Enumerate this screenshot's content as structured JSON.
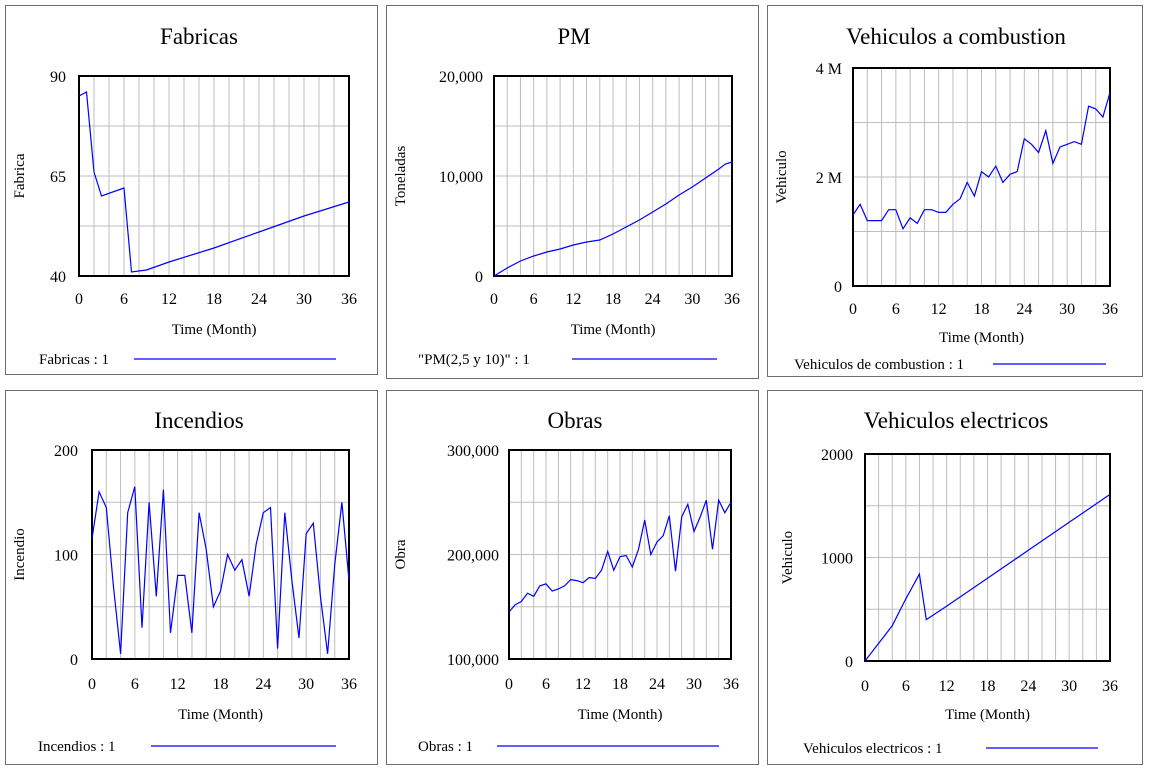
{
  "chart_data": [
    {
      "id": "fabricas",
      "type": "line",
      "title": "Fabricas",
      "xlabel": "Time (Month)",
      "ylabel": "Fabrica",
      "xlim": [
        0,
        36
      ],
      "ylim": [
        40,
        90
      ],
      "x_ticks": [
        0,
        6,
        12,
        18,
        24,
        30,
        36
      ],
      "x_tick_labels": [
        "0",
        "6",
        "12",
        "18",
        "24",
        "30",
        "36"
      ],
      "y_ticks": [
        40,
        65,
        90
      ],
      "y_tick_labels": [
        "40",
        "65",
        "90"
      ],
      "grid": true,
      "legend": "Fabricas : 1",
      "series": [
        {
          "name": "Fabricas : 1",
          "x": [
            0,
            1,
            2,
            3,
            6,
            7,
            9,
            12,
            18,
            24,
            30,
            36
          ],
          "y": [
            85,
            86,
            66,
            60,
            62,
            41,
            41.5,
            43.5,
            47,
            51,
            55,
            58.5
          ]
        }
      ]
    },
    {
      "id": "pm",
      "type": "line",
      "title": "PM",
      "xlabel": "Time (Month)",
      "ylabel": "Toneladas",
      "xlim": [
        0,
        36
      ],
      "ylim": [
        0,
        20000
      ],
      "x_ticks": [
        0,
        6,
        12,
        18,
        24,
        30,
        36
      ],
      "x_tick_labels": [
        "0",
        "6",
        "12",
        "18",
        "24",
        "30",
        "36"
      ],
      "y_ticks": [
        0,
        10000,
        20000
      ],
      "y_tick_labels": [
        "0",
        "10,000",
        "20,000"
      ],
      "grid": true,
      "legend": "\"PM(2,5 y 10)\" : 1",
      "series": [
        {
          "name": "\"PM(2,5 y 10)\" : 1",
          "x": [
            0,
            2,
            4,
            6,
            8,
            10,
            12,
            14,
            16,
            18,
            20,
            22,
            24,
            26,
            28,
            30,
            32,
            34,
            35,
            36
          ],
          "y": [
            0,
            800,
            1500,
            2000,
            2400,
            2700,
            3100,
            3400,
            3600,
            4200,
            4900,
            5600,
            6400,
            7200,
            8100,
            8900,
            9800,
            10700,
            11200,
            11400
          ]
        }
      ]
    },
    {
      "id": "vehiculos-combustion",
      "type": "line",
      "title": "Vehiculos a combustion",
      "xlabel": "Time (Month)",
      "ylabel": "Vehiculo",
      "xlim": [
        0,
        36
      ],
      "ylim": [
        0,
        4000000
      ],
      "x_ticks": [
        0,
        6,
        12,
        18,
        24,
        30,
        36
      ],
      "x_tick_labels": [
        "0",
        "6",
        "12",
        "18",
        "24",
        "30",
        "36"
      ],
      "y_ticks": [
        0,
        2000000,
        4000000
      ],
      "y_tick_labels": [
        "0",
        "2 M",
        "4 M"
      ],
      "grid": true,
      "legend": "Vehiculos de combustion : 1",
      "series": [
        {
          "name": "Vehiculos de combustion : 1",
          "x": [
            0,
            1,
            2,
            3,
            4,
            5,
            6,
            7,
            8,
            9,
            10,
            11,
            12,
            13,
            14,
            15,
            16,
            17,
            18,
            19,
            20,
            21,
            22,
            23,
            24,
            25,
            26,
            27,
            28,
            29,
            30,
            31,
            32,
            33,
            34,
            35,
            36
          ],
          "y": [
            1300000,
            1500000,
            1200000,
            1200000,
            1200000,
            1400000,
            1400000,
            1050000,
            1250000,
            1150000,
            1400000,
            1400000,
            1350000,
            1350000,
            1500000,
            1600000,
            1900000,
            1650000,
            2100000,
            2000000,
            2200000,
            1900000,
            2050000,
            2100000,
            2700000,
            2600000,
            2450000,
            2850000,
            2250000,
            2550000,
            2600000,
            2650000,
            2600000,
            3300000,
            3250000,
            3100000,
            3550000
          ]
        }
      ]
    },
    {
      "id": "incendios",
      "type": "line",
      "title": "Incendios",
      "xlabel": "Time (Month)",
      "ylabel": "Incendio",
      "xlim": [
        0,
        36
      ],
      "ylim": [
        0,
        200
      ],
      "x_ticks": [
        0,
        6,
        12,
        18,
        24,
        30,
        36
      ],
      "x_tick_labels": [
        "0",
        "6",
        "12",
        "18",
        "24",
        "30",
        "36"
      ],
      "y_ticks": [
        0,
        100,
        200
      ],
      "y_tick_labels": [
        "0",
        "100",
        "200"
      ],
      "grid": true,
      "legend": "Incendios : 1",
      "series": [
        {
          "name": "Incendios : 1",
          "x": [
            0,
            1,
            2,
            3,
            4,
            5,
            6,
            7,
            8,
            9,
            10,
            11,
            12,
            13,
            14,
            15,
            16,
            17,
            18,
            19,
            20,
            21,
            22,
            23,
            24,
            25,
            26,
            27,
            28,
            29,
            30,
            31,
            32,
            33,
            34,
            35,
            36
          ],
          "y": [
            115,
            160,
            145,
            70,
            5,
            140,
            165,
            30,
            150,
            60,
            162,
            25,
            80,
            80,
            25,
            140,
            105,
            50,
            65,
            100,
            85,
            95,
            60,
            110,
            140,
            145,
            10,
            140,
            75,
            20,
            120,
            130,
            60,
            5,
            90,
            150,
            75
          ]
        }
      ]
    },
    {
      "id": "obras",
      "type": "line",
      "title": "Obras",
      "xlabel": "Time (Month)",
      "ylabel": "Obra",
      "xlim": [
        0,
        36
      ],
      "ylim": [
        100000,
        300000
      ],
      "x_ticks": [
        0,
        6,
        12,
        18,
        24,
        30,
        36
      ],
      "x_tick_labels": [
        "0",
        "6",
        "12",
        "18",
        "24",
        "30",
        "36"
      ],
      "y_ticks": [
        100000,
        200000,
        300000
      ],
      "y_tick_labels": [
        "100,000",
        "200,000",
        "300,000"
      ],
      "grid": true,
      "legend": "Obras : 1",
      "series": [
        {
          "name": "Obras : 1",
          "x": [
            0,
            1,
            2,
            3,
            4,
            5,
            6,
            7,
            8,
            9,
            10,
            11,
            12,
            13,
            14,
            15,
            16,
            17,
            18,
            19,
            20,
            21,
            22,
            23,
            24,
            25,
            26,
            27,
            28,
            29,
            30,
            31,
            32,
            33,
            34,
            35,
            36
          ],
          "y": [
            145000,
            152000,
            155000,
            163000,
            160000,
            170000,
            172000,
            165000,
            167000,
            170000,
            176000,
            175000,
            173000,
            178000,
            177000,
            185000,
            203000,
            185000,
            198000,
            199000,
            188000,
            205000,
            233000,
            200000,
            212000,
            218000,
            237000,
            184000,
            236000,
            248000,
            222000,
            236000,
            252000,
            205000,
            252000,
            240000,
            250000
          ]
        }
      ]
    },
    {
      "id": "vehiculos-electricos",
      "type": "line",
      "title": "Vehiculos electricos",
      "xlabel": "Time (Month)",
      "ylabel": "Vehiculo",
      "xlim": [
        0,
        36
      ],
      "ylim": [
        0,
        2000
      ],
      "x_ticks": [
        0,
        6,
        12,
        18,
        24,
        30,
        36
      ],
      "x_tick_labels": [
        "0",
        "6",
        "12",
        "18",
        "24",
        "30",
        "36"
      ],
      "y_ticks": [
        0,
        1000,
        2000
      ],
      "y_tick_labels": [
        "0",
        "1000",
        "2000"
      ],
      "grid": true,
      "legend": "Vehiculos electricos : 1",
      "series": [
        {
          "name": "Vehiculos electricos : 1",
          "x": [
            0,
            2,
            4,
            6,
            8,
            9,
            12,
            18,
            24,
            30,
            36
          ],
          "y": [
            0,
            170,
            340,
            600,
            840,
            400,
            530,
            800,
            1070,
            1340,
            1610
          ]
        }
      ]
    }
  ]
}
